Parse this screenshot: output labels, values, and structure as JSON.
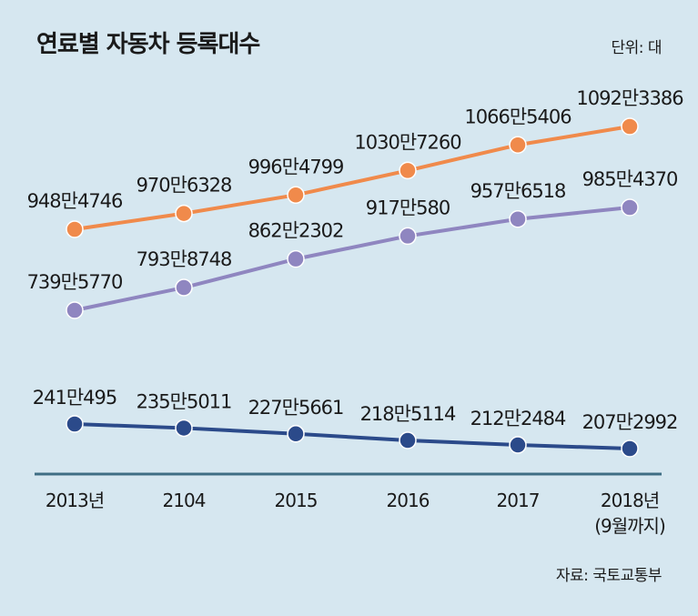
{
  "title": "연료별 자동차 등록대수",
  "unit": "단위: 대",
  "source": "자료: 국토교통부",
  "chart_data": {
    "type": "line",
    "title": "연료별 자동차 등록대수",
    "unit": "단위: 대",
    "categories": [
      [
        "2013년"
      ],
      [
        "2104"
      ],
      [
        "2015"
      ],
      [
        "2016"
      ],
      [
        "2017"
      ],
      [
        "2018년",
        "(9월까지)"
      ]
    ],
    "series": [
      {
        "color": "#f08a4b",
        "values": [
          9484746,
          9706328,
          9964799,
          10307260,
          10665406,
          10923386
        ],
        "labels": [
          "948만4746",
          "970만6328",
          "996만4799",
          "1030만7260",
          "1066만5406",
          "1092만3386"
        ]
      },
      {
        "color": "#8f86c0",
        "values": [
          7395770,
          7938748,
          8622302,
          9170580,
          9576518,
          9854370
        ],
        "labels": [
          "739만5770",
          "793만8748",
          "862만2302",
          "917만580",
          "957만6518",
          "985만4370"
        ]
      },
      {
        "color": "#2b4a8a",
        "values": [
          2410495,
          2355011,
          2275661,
          2185114,
          2122484,
          2072992
        ],
        "labels": [
          "241만495",
          "235만5011",
          "227만5661",
          "218만5114",
          "212만2484",
          "207만2992"
        ]
      }
    ]
  }
}
